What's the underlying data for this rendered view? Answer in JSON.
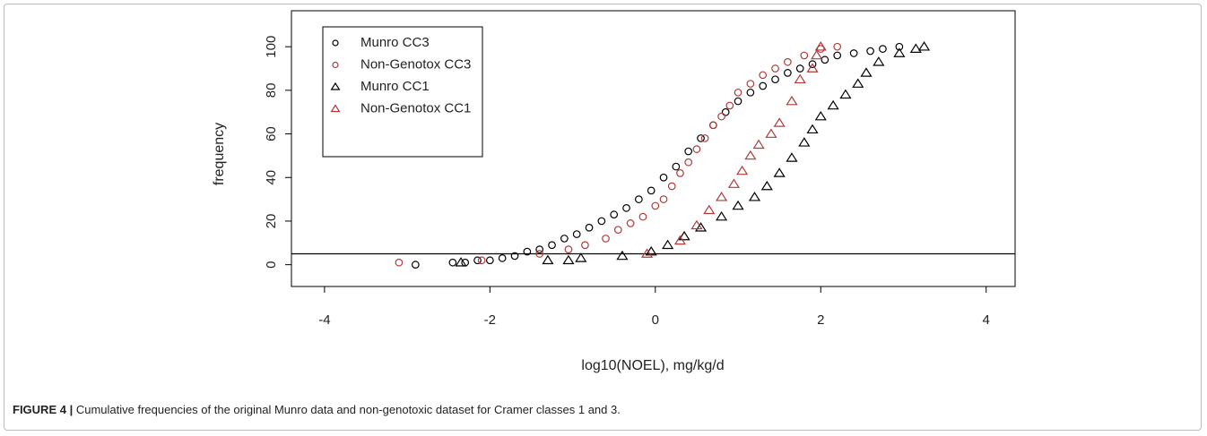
{
  "chart_data": {
    "type": "scatter",
    "xlabel": "log10(NOEL), mg/kg/d",
    "ylabel": "frequency",
    "xlim": [
      -4.4,
      4.35
    ],
    "ylim": [
      -10,
      116.5
    ],
    "xticks": [
      -4,
      -2,
      0,
      2,
      4
    ],
    "yticks": [
      0,
      20,
      40,
      60,
      80,
      100
    ],
    "hline": 5,
    "legend": "top-left",
    "series": [
      {
        "name": "Munro CC3",
        "color": "#000000",
        "marker": "circle",
        "x": [
          -2.9,
          -2.45,
          -2.3,
          -2.15,
          -2.0,
          -1.85,
          -1.7,
          -1.55,
          -1.4,
          -1.25,
          -1.1,
          -0.95,
          -0.8,
          -0.65,
          -0.5,
          -0.35,
          -0.2,
          -0.05,
          0.1,
          0.25,
          0.4,
          0.55,
          0.7,
          0.85,
          1.0,
          1.15,
          1.3,
          1.45,
          1.6,
          1.75,
          1.9,
          2.05,
          2.2,
          2.4,
          2.6,
          2.75,
          2.95
        ],
        "values": [
          0,
          1,
          1,
          2,
          2,
          3,
          4,
          6,
          7,
          9,
          12,
          14,
          17,
          20,
          23,
          26,
          30,
          34,
          40,
          45,
          52,
          58,
          64,
          70,
          75,
          79,
          82,
          85,
          88,
          90,
          92,
          94,
          96,
          97,
          98,
          99,
          100
        ]
      },
      {
        "name": "Non-Genotox CC3",
        "color": "#b03a3a",
        "marker": "circle",
        "x": [
          -3.1,
          -2.1,
          -1.4,
          -1.05,
          -0.85,
          -0.6,
          -0.45,
          -0.3,
          -0.15,
          0.0,
          0.1,
          0.2,
          0.3,
          0.4,
          0.5,
          0.6,
          0.7,
          0.8,
          0.9,
          1.0,
          1.15,
          1.3,
          1.45,
          1.6,
          1.8,
          2.0,
          2.2
        ],
        "values": [
          1,
          2,
          5,
          7,
          9,
          12,
          16,
          19,
          22,
          27,
          30,
          36,
          42,
          47,
          53,
          58,
          64,
          68,
          73,
          79,
          83,
          87,
          90,
          93,
          96,
          99,
          100
        ]
      },
      {
        "name": "Munro CC1",
        "color": "#000000",
        "marker": "triangle",
        "x": [
          -2.35,
          -1.3,
          -1.05,
          -0.9,
          -0.4,
          -0.05,
          0.15,
          0.35,
          0.55,
          0.8,
          1.0,
          1.2,
          1.35,
          1.5,
          1.65,
          1.8,
          1.9,
          2.0,
          2.15,
          2.3,
          2.45,
          2.55,
          2.7,
          2.95,
          3.15,
          3.25
        ],
        "values": [
          1,
          2,
          2,
          3,
          4,
          6,
          9,
          13,
          17,
          22,
          27,
          31,
          36,
          42,
          49,
          56,
          62,
          68,
          73,
          78,
          83,
          88,
          93,
          97,
          99,
          100
        ]
      },
      {
        "name": "Non-Genotox CC1",
        "color": "#b03a3a",
        "marker": "triangle",
        "x": [
          -0.1,
          0.3,
          0.5,
          0.65,
          0.8,
          0.95,
          1.05,
          1.15,
          1.25,
          1.4,
          1.5,
          1.65,
          1.75,
          1.9,
          1.95,
          2.0
        ],
        "values": [
          5,
          11,
          18,
          25,
          31,
          37,
          43,
          50,
          55,
          60,
          65,
          75,
          85,
          90,
          96,
          100
        ]
      }
    ]
  },
  "caption": {
    "label": "FIGURE 4 |",
    "text": "Cumulative frequencies of the original Munro data and non-genotoxic dataset for Cramer classes 1 and 3."
  }
}
